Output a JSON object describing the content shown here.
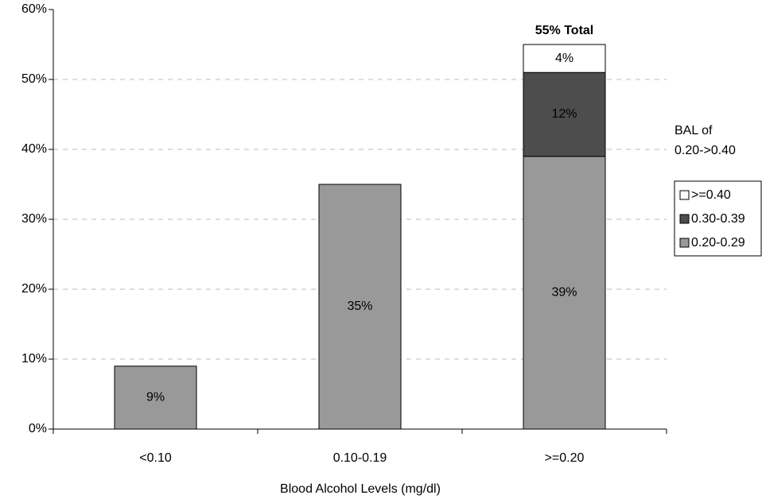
{
  "chart_data": {
    "type": "bar",
    "stacked": true,
    "categories": [
      "<0.10",
      "0.10-0.19",
      ">=0.20"
    ],
    "series": [
      {
        "color": "#999999",
        "values": [
          9,
          35,
          null
        ],
        "value_labels": [
          "9%",
          "35%",
          null
        ]
      },
      {
        "name": "0.20-0.29",
        "color": "#999999",
        "values": [
          null,
          null,
          39
        ],
        "value_labels": [
          null,
          null,
          "39%"
        ]
      },
      {
        "name": "0.30-0.39",
        "color": "#4d4d4d",
        "values": [
          null,
          null,
          12
        ],
        "value_labels": [
          null,
          null,
          "12%"
        ]
      },
      {
        "name": ">=0.40",
        "color": "#ffffff",
        "values": [
          null,
          null,
          4
        ],
        "value_labels": [
          null,
          null,
          "4%"
        ]
      }
    ],
    "annotation": "55% Total",
    "x_label": "Blood Alcohol Levels (mg/dl)",
    "legend_title": [
      "BAL of",
      "0.20->0.40"
    ],
    "legend": "right",
    "ylim": [
      0,
      60
    ],
    "yticks": [
      {
        "value": 0,
        "label": "0%"
      },
      {
        "value": 10,
        "label": "10%"
      },
      {
        "value": 20,
        "label": "20%"
      },
      {
        "value": 30,
        "label": "30%"
      },
      {
        "value": 40,
        "label": "40%"
      },
      {
        "value": 50,
        "label": "50%"
      },
      {
        "value": 60,
        "label": "60%"
      }
    ],
    "grid": true
  }
}
